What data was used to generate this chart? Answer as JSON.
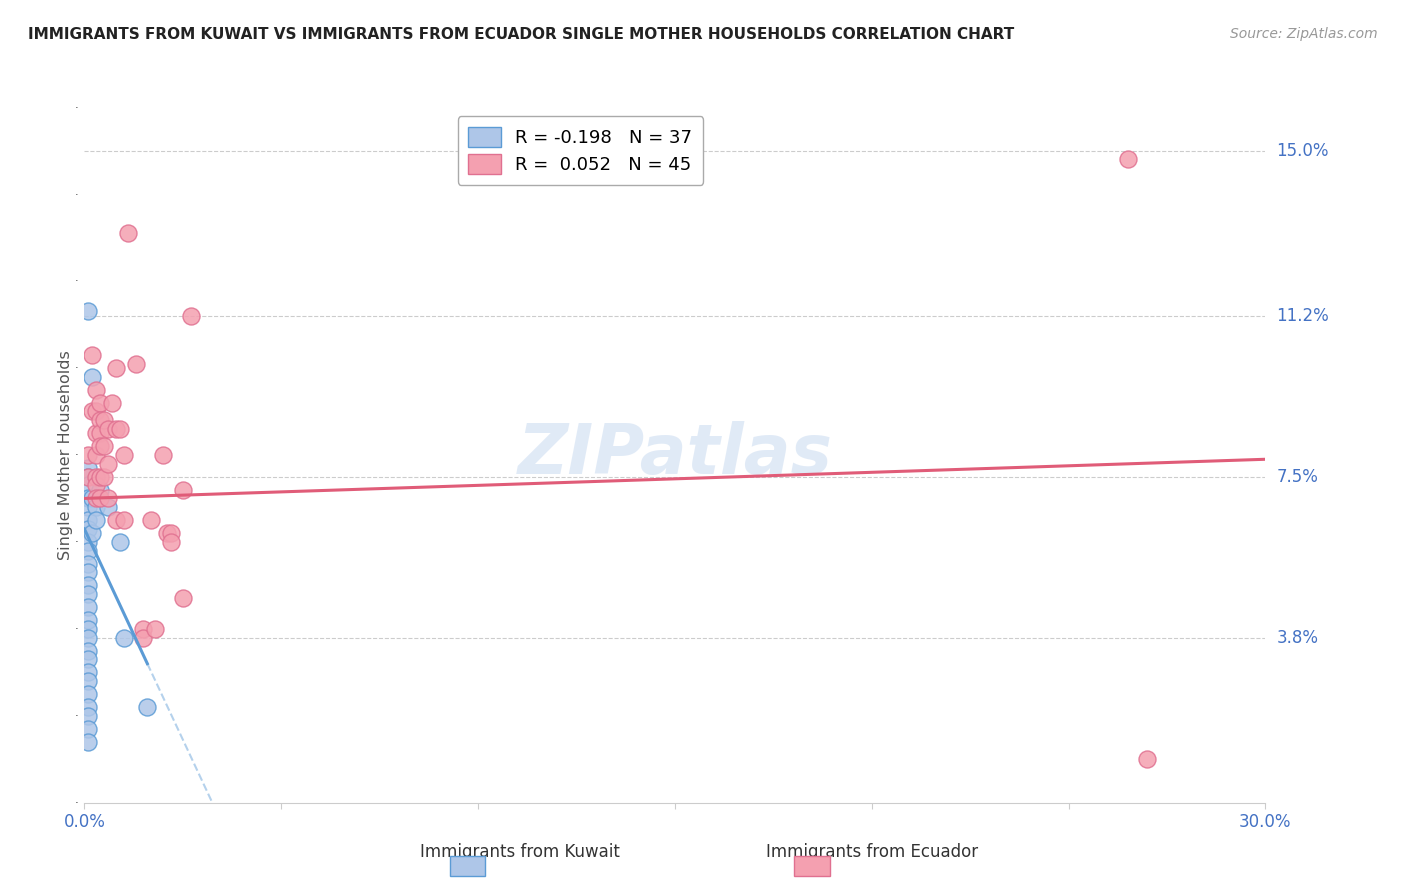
{
  "title": "IMMIGRANTS FROM KUWAIT VS IMMIGRANTS FROM ECUADOR SINGLE MOTHER HOUSEHOLDS CORRELATION CHART",
  "source": "Source: ZipAtlas.com",
  "ylabel": "Single Mother Households",
  "xlim": [
    0.0,
    0.3
  ],
  "ylim": [
    0.0,
    0.16
  ],
  "ytick_labels": [
    "15.0%",
    "11.2%",
    "7.5%",
    "3.8%"
  ],
  "ytick_vals": [
    0.15,
    0.112,
    0.075,
    0.038
  ],
  "xtick_labels": [
    "0.0%",
    "",
    "",
    "",
    "",
    "",
    "30.0%"
  ],
  "legend_label_kuwait": "Immigrants from Kuwait",
  "legend_label_ecuador": "Immigrants from Ecuador",
  "kuwait_color": "#aec6e8",
  "ecuador_color": "#f4a0b0",
  "kuwait_edge_color": "#5b9bd5",
  "ecuador_edge_color": "#e07090",
  "kuwait_line_color": "#5b9bd5",
  "ecuador_line_color": "#e05c78",
  "watermark": "ZIPatlas",
  "kuwait_r": -0.198,
  "ecuador_r": 0.052,
  "kuwait_n": 37,
  "ecuador_n": 45,
  "kuwait_line_x0": 0.0,
  "kuwait_line_y0": 0.063,
  "kuwait_line_x1": 0.016,
  "kuwait_line_y1": 0.032,
  "ecuador_line_x0": 0.0,
  "ecuador_line_y0": 0.07,
  "ecuador_line_x1": 0.3,
  "ecuador_line_y1": 0.079,
  "kuwait_points": [
    [
      0.001,
      0.113
    ],
    [
      0.002,
      0.098
    ],
    [
      0.001,
      0.077
    ],
    [
      0.001,
      0.075
    ],
    [
      0.001,
      0.073
    ],
    [
      0.001,
      0.07
    ],
    [
      0.001,
      0.068
    ],
    [
      0.001,
      0.065
    ],
    [
      0.001,
      0.063
    ],
    [
      0.001,
      0.06
    ],
    [
      0.001,
      0.058
    ],
    [
      0.001,
      0.055
    ],
    [
      0.001,
      0.053
    ],
    [
      0.001,
      0.05
    ],
    [
      0.001,
      0.048
    ],
    [
      0.001,
      0.045
    ],
    [
      0.001,
      0.042
    ],
    [
      0.001,
      0.04
    ],
    [
      0.001,
      0.038
    ],
    [
      0.001,
      0.035
    ],
    [
      0.001,
      0.033
    ],
    [
      0.001,
      0.03
    ],
    [
      0.001,
      0.028
    ],
    [
      0.001,
      0.025
    ],
    [
      0.001,
      0.022
    ],
    [
      0.001,
      0.02
    ],
    [
      0.001,
      0.017
    ],
    [
      0.001,
      0.014
    ],
    [
      0.002,
      0.07
    ],
    [
      0.002,
      0.062
    ],
    [
      0.003,
      0.068
    ],
    [
      0.003,
      0.065
    ],
    [
      0.004,
      0.072
    ],
    [
      0.006,
      0.068
    ],
    [
      0.009,
      0.06
    ],
    [
      0.01,
      0.038
    ],
    [
      0.016,
      0.022
    ]
  ],
  "ecuador_points": [
    [
      0.001,
      0.08
    ],
    [
      0.001,
      0.075
    ],
    [
      0.002,
      0.103
    ],
    [
      0.002,
      0.09
    ],
    [
      0.003,
      0.095
    ],
    [
      0.003,
      0.09
    ],
    [
      0.003,
      0.085
    ],
    [
      0.003,
      0.08
    ],
    [
      0.003,
      0.075
    ],
    [
      0.003,
      0.073
    ],
    [
      0.003,
      0.07
    ],
    [
      0.004,
      0.092
    ],
    [
      0.004,
      0.088
    ],
    [
      0.004,
      0.085
    ],
    [
      0.004,
      0.082
    ],
    [
      0.004,
      0.075
    ],
    [
      0.004,
      0.07
    ],
    [
      0.005,
      0.088
    ],
    [
      0.005,
      0.082
    ],
    [
      0.005,
      0.075
    ],
    [
      0.006,
      0.086
    ],
    [
      0.006,
      0.078
    ],
    [
      0.006,
      0.07
    ],
    [
      0.007,
      0.092
    ],
    [
      0.008,
      0.1
    ],
    [
      0.008,
      0.086
    ],
    [
      0.008,
      0.065
    ],
    [
      0.009,
      0.086
    ],
    [
      0.01,
      0.08
    ],
    [
      0.01,
      0.065
    ],
    [
      0.011,
      0.131
    ],
    [
      0.013,
      0.101
    ],
    [
      0.015,
      0.04
    ],
    [
      0.015,
      0.038
    ],
    [
      0.017,
      0.065
    ],
    [
      0.018,
      0.04
    ],
    [
      0.02,
      0.08
    ],
    [
      0.021,
      0.062
    ],
    [
      0.022,
      0.062
    ],
    [
      0.022,
      0.06
    ],
    [
      0.025,
      0.072
    ],
    [
      0.025,
      0.047
    ],
    [
      0.027,
      0.112
    ],
    [
      0.265,
      0.148
    ],
    [
      0.27,
      0.01
    ]
  ]
}
